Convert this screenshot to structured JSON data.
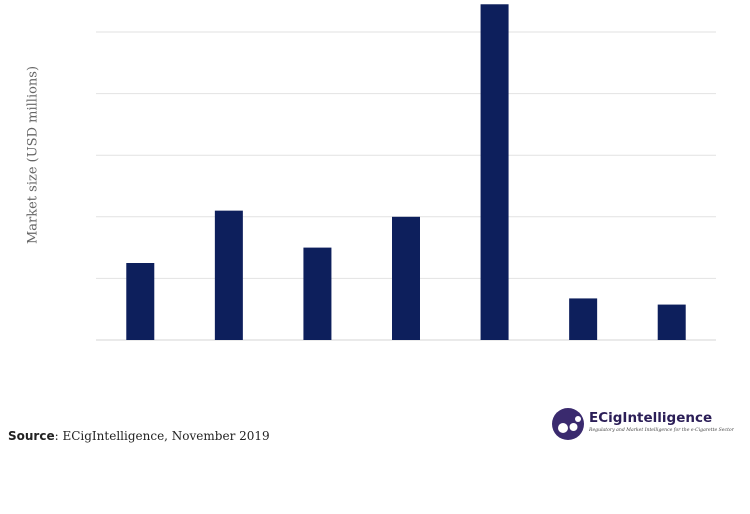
{
  "chart_data": {
    "type": "bar",
    "categories": [
      "",
      "",
      "",
      "",
      "",
      "",
      ""
    ],
    "values": [
      25,
      42,
      30,
      40,
      109,
      13.5,
      11.5
    ],
    "title": "",
    "xlabel": "",
    "ylabel": "Market size (USD millions)",
    "ylim": [
      0,
      110
    ],
    "ygrid_step": 20,
    "grid": true,
    "bar_color": "#0d1f5c",
    "grid_color": "#e2e2e2"
  },
  "source": {
    "label": "Source",
    "text": ": ECigIntelligence, November 2019"
  },
  "logo": {
    "name": "ECigIntelligence",
    "tagline": "Regulatory and Market Intelligence for the e-Cigarette Sector",
    "color": "#3a2a6e"
  }
}
